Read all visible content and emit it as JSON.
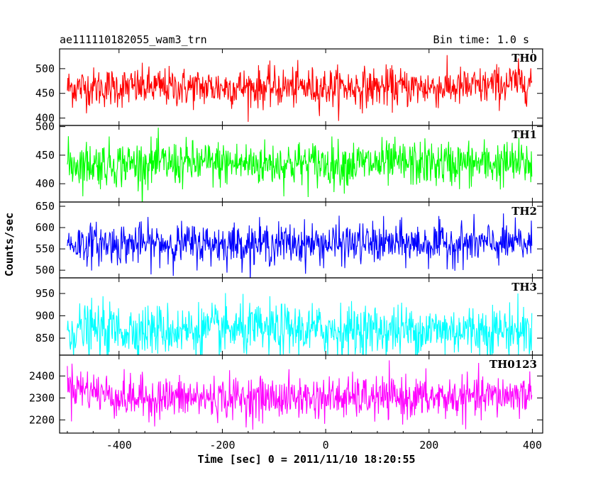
{
  "chart_data": {
    "type": "line",
    "title": "ae111110182055_wam3_trn",
    "subtitle": "Bin time: 1.0 s",
    "xlabel": "Time [sec] 0 = 2011/11/10 18:20:55",
    "ylabel": "Counts/sec",
    "xlim": [
      -515,
      420
    ],
    "xticks": [
      -400,
      -200,
      0,
      200,
      400
    ],
    "x_start": -500,
    "x_end": 399,
    "x_step": 1,
    "grid": false,
    "panels": [
      {
        "name": "TH0",
        "color": "#ff0000",
        "ylim": [
          385,
          540
        ],
        "yticks": [
          400,
          450,
          500
        ],
        "mean": 462,
        "spread": 20,
        "end_mean": 475
      },
      {
        "name": "TH1",
        "color": "#00ff00",
        "ylim": [
          368,
          502
        ],
        "yticks": [
          400,
          450,
          500
        ],
        "mean": 435,
        "spread": 20,
        "end_mean": 435
      },
      {
        "name": "TH2",
        "color": "#0000ff",
        "ylim": [
          482,
          660
        ],
        "yticks": [
          500,
          550,
          600,
          650
        ],
        "mean": 562,
        "spread": 24,
        "end_mean": 562
      },
      {
        "name": "TH3",
        "color": "#00ffff",
        "ylim": [
          812,
          985
        ],
        "yticks": [
          850,
          900,
          950
        ],
        "mean": 868,
        "spread": 29,
        "end_mean": 868
      },
      {
        "name": "TH0123",
        "color": "#ff00ff",
        "ylim": [
          2140,
          2495
        ],
        "yticks": [
          2200,
          2300,
          2400
        ],
        "mean": 2300,
        "spread": 48,
        "start_mean": 2360,
        "end_mean": 2320
      }
    ]
  }
}
